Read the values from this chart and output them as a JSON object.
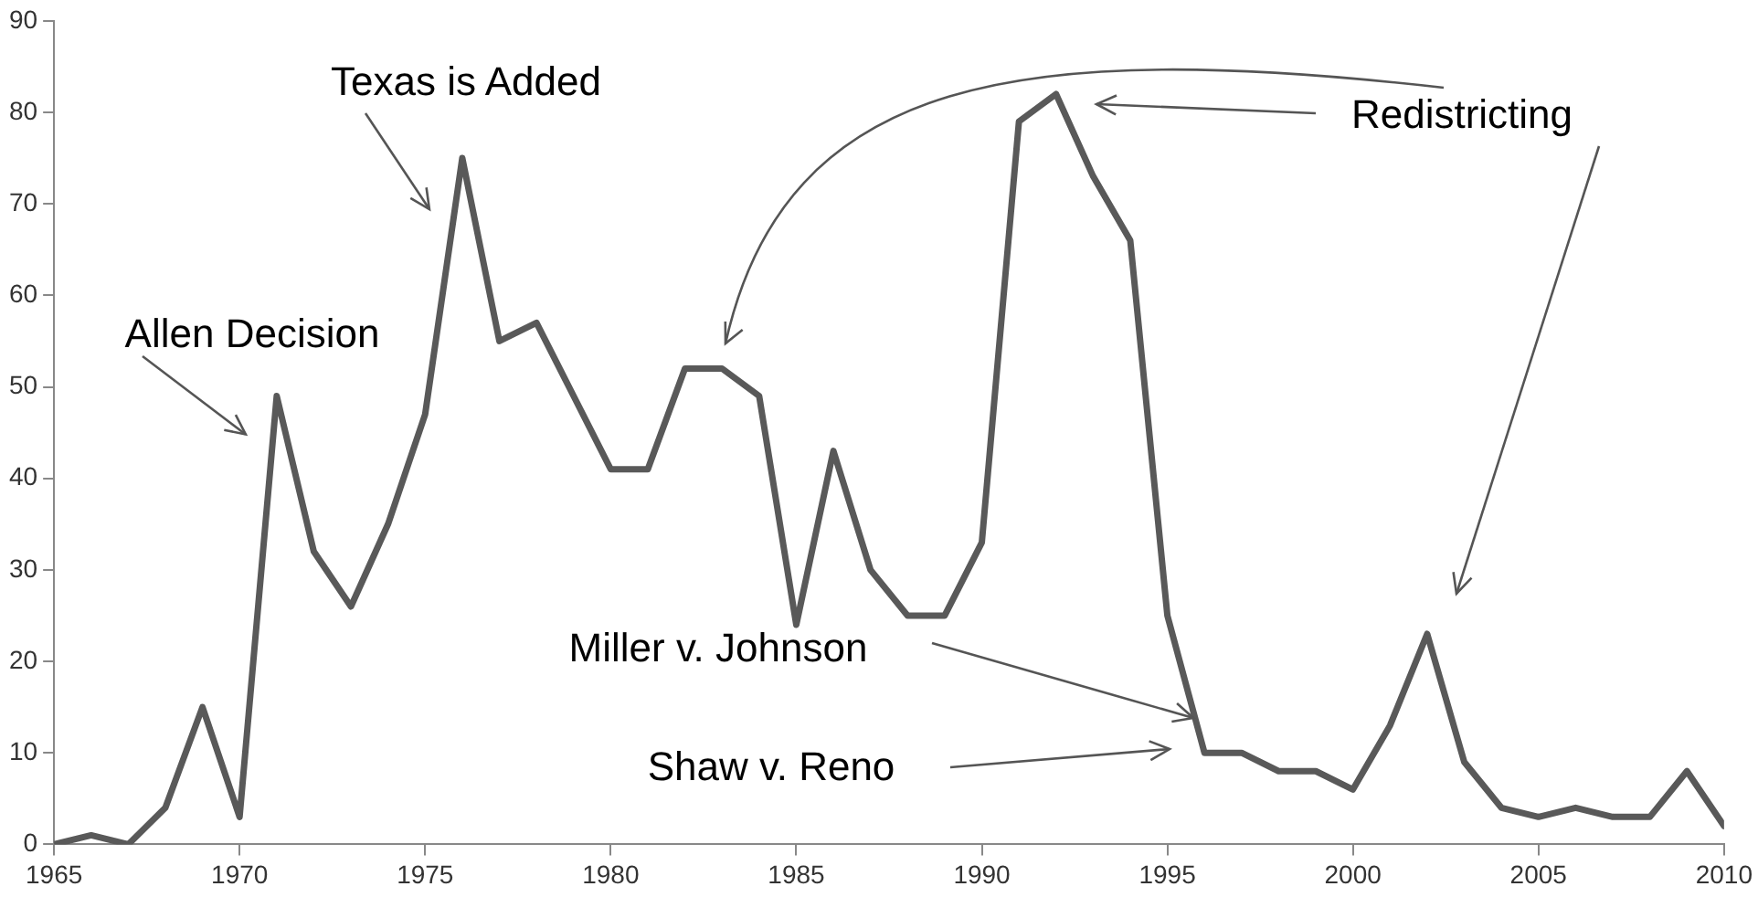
{
  "chart_data": {
    "type": "line",
    "color": "#595959",
    "x": [
      1965,
      1966,
      1967,
      1968,
      1969,
      1970,
      1971,
      1972,
      1973,
      1974,
      1975,
      1976,
      1977,
      1978,
      1979,
      1980,
      1981,
      1982,
      1983,
      1984,
      1985,
      1986,
      1987,
      1988,
      1989,
      1990,
      1991,
      1992,
      1993,
      1994,
      1995,
      1996,
      1997,
      1998,
      1999,
      2000,
      2001,
      2002,
      2003,
      2004,
      2005,
      2006,
      2007,
      2008,
      2009,
      2010
    ],
    "values": [
      0,
      1,
      0,
      4,
      15,
      3,
      49,
      32,
      26,
      35,
      47,
      75,
      55,
      57,
      49,
      41,
      41,
      52,
      52,
      49,
      24,
      43,
      30,
      25,
      25,
      33,
      79,
      82,
      73,
      66,
      25,
      10,
      10,
      8,
      8,
      6,
      13,
      23,
      9,
      4,
      3,
      4,
      3,
      3,
      8,
      2
    ],
    "xlim": [
      1965,
      2010
    ],
    "xticks": [
      1965,
      1970,
      1975,
      1980,
      1985,
      1990,
      1995,
      2000,
      2005,
      2010
    ],
    "ylim": [
      0,
      90
    ],
    "yticks": [
      0,
      10,
      20,
      30,
      40,
      50,
      60,
      70,
      80,
      90
    ],
    "grid": false,
    "legend": false,
    "marker": "none",
    "line_style": "solid",
    "annotations": [
      {
        "text": "Allen Decision",
        "x": 1971,
        "y": 49
      },
      {
        "text": "Texas is Added",
        "x": 1976,
        "y": 75
      },
      "Redistricting",
      "Miller v. Johnson",
      "Shaw v. Reno"
    ]
  }
}
